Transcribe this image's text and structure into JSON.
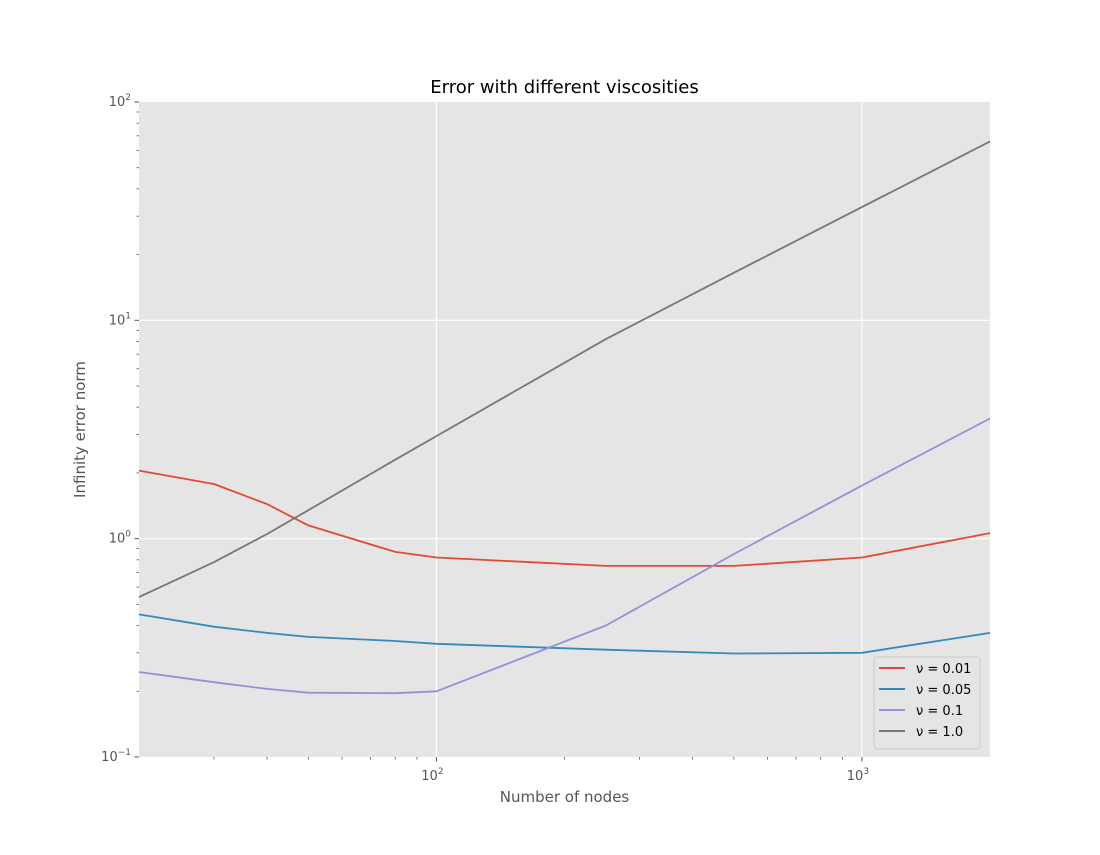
{
  "chart_data": {
    "type": "line",
    "title": "Error with different viscosities",
    "xlabel": "Number of nodes",
    "ylabel": "Infinity error norm",
    "xscale": "log",
    "yscale": "log",
    "xlim": [
      20,
      2000
    ],
    "ylim": [
      0.1,
      100
    ],
    "x_ticks": [
      {
        "value": 100,
        "base": "10",
        "exp": "2"
      },
      {
        "value": 1000,
        "base": "10",
        "exp": "3"
      }
    ],
    "y_ticks": [
      {
        "value": 0.1,
        "base": "10",
        "exp": "−1"
      },
      {
        "value": 1,
        "base": "10",
        "exp": "0"
      },
      {
        "value": 10,
        "base": "10",
        "exp": "1"
      },
      {
        "value": 100,
        "base": "10",
        "exp": "2"
      }
    ],
    "grid": true,
    "legend_position": "lower-right",
    "x": [
      20,
      30,
      40,
      50,
      80,
      100,
      250,
      500,
      1000,
      2000
    ],
    "series": [
      {
        "name": "ν = 0.01",
        "color": "#E24A33",
        "values": [
          2.05,
          1.78,
          1.44,
          1.15,
          0.87,
          0.82,
          0.75,
          0.75,
          0.82,
          1.06
        ]
      },
      {
        "name": "ν = 0.05",
        "color": "#348ABD",
        "values": [
          0.45,
          0.395,
          0.37,
          0.355,
          0.34,
          0.33,
          0.31,
          0.298,
          0.3,
          0.37
        ]
      },
      {
        "name": "ν = 0.1",
        "color": "#988ED5",
        "values": [
          0.245,
          0.22,
          0.205,
          0.197,
          0.196,
          0.2,
          0.4,
          0.85,
          1.75,
          3.55
        ]
      },
      {
        "name": "ν = 1.0",
        "color": "#777777",
        "values": [
          0.54,
          0.78,
          1.05,
          1.35,
          2.3,
          2.95,
          8.2,
          16.5,
          33.0,
          66.0
        ]
      }
    ]
  }
}
